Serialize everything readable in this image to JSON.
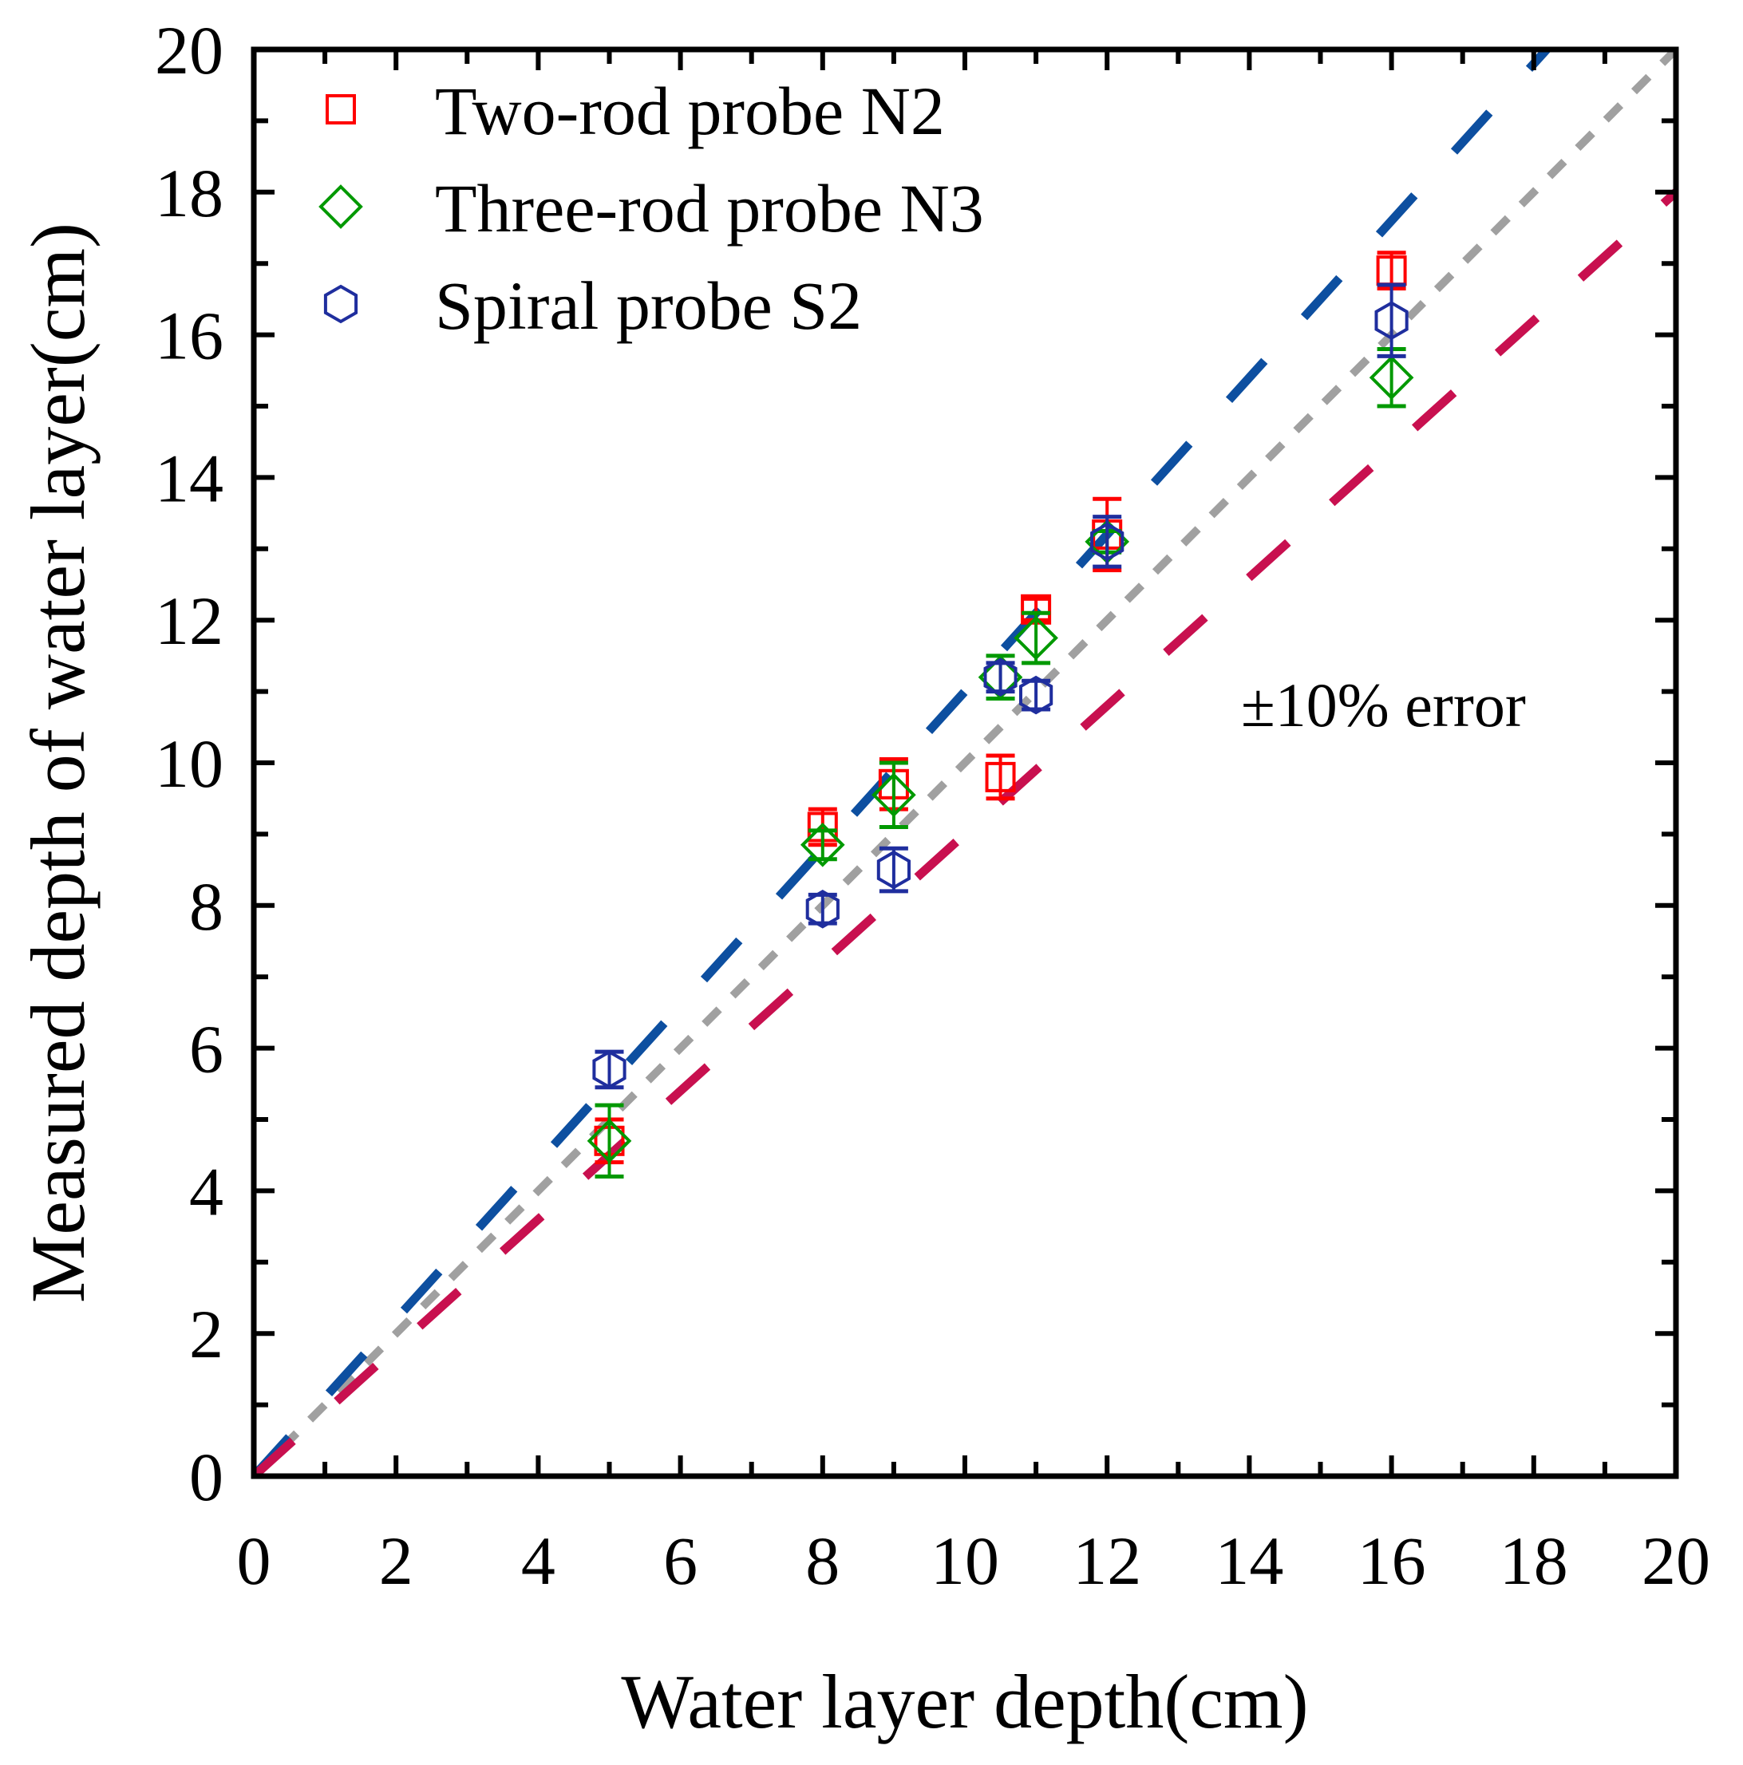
{
  "chart_data": {
    "type": "scatter",
    "title": "",
    "xlabel": "Water layer depth(cm)",
    "ylabel": "Measured depth of water layer(cm)",
    "xlim": [
      0,
      20
    ],
    "ylim": [
      0,
      20
    ],
    "xticks": [
      "0",
      "2",
      "4",
      "6",
      "8",
      "10",
      "12",
      "14",
      "16",
      "18",
      "20"
    ],
    "yticks": [
      "0",
      "2",
      "4",
      "6",
      "8",
      "10",
      "12",
      "14",
      "16",
      "18",
      "20"
    ],
    "grid": false,
    "legend_position": "top-left",
    "annotation": "±10% error",
    "reference_lines": [
      {
        "name": "1:1 line",
        "slope": 1.0,
        "color": "#a0a0a0",
        "style": "short-dash"
      },
      {
        "name": "+10% error",
        "slope": 1.1,
        "color": "#0d4fa0",
        "style": "long-dash"
      },
      {
        "name": "-10% error",
        "slope": 0.9,
        "color": "#c8104f",
        "style": "long-dash"
      }
    ],
    "series": [
      {
        "name": "Two-rod probe N2",
        "marker": "square",
        "color": "#ff0000",
        "x": [
          5,
          8,
          9,
          10.5,
          11,
          12,
          16
        ],
        "y": [
          4.7,
          9.1,
          9.7,
          9.8,
          12.15,
          13.2,
          16.9
        ],
        "err": [
          0.3,
          0.25,
          0.35,
          0.3,
          0.15,
          0.5,
          0.25
        ]
      },
      {
        "name": "Three-rod probe N3",
        "marker": "diamond",
        "color": "#009900",
        "x": [
          5,
          8,
          9,
          10.5,
          11,
          12,
          16
        ],
        "y": [
          4.7,
          8.85,
          9.55,
          11.2,
          11.75,
          13.1,
          15.4
        ],
        "err": [
          0.5,
          0.2,
          0.45,
          0.3,
          0.35,
          0.15,
          0.4
        ]
      },
      {
        "name": "Spiral probe S2",
        "marker": "hexagon",
        "color": "#1f2e9e",
        "x": [
          5,
          8,
          9,
          10.5,
          11,
          12,
          16
        ],
        "y": [
          5.7,
          7.95,
          8.5,
          11.2,
          10.95,
          13.1,
          16.2
        ],
        "err": [
          0.25,
          0.2,
          0.3,
          0.2,
          0.2,
          0.35,
          0.5
        ]
      }
    ]
  }
}
